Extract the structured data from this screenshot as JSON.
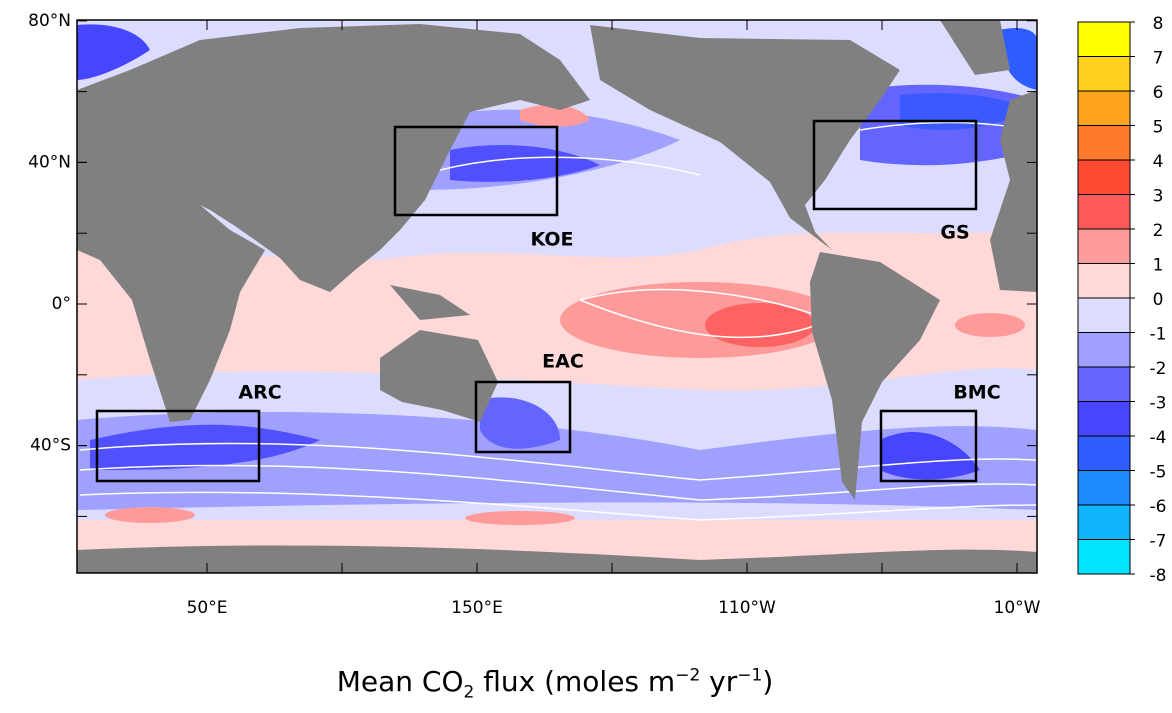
{
  "map": {
    "title": {
      "parts": [
        "Mean CO",
        "2",
        " flux (moles m",
        "−2",
        " yr",
        "−1",
        ")"
      ]
    },
    "lat_ticks": [
      {
        "value": 80,
        "label": "80°N"
      },
      {
        "value": 40,
        "label": "40°N"
      },
      {
        "value": 0,
        "label": "0°"
      },
      {
        "value": -40,
        "label": "40°S"
      }
    ],
    "lon_ticks": [
      {
        "value": 50,
        "label": "50°E"
      },
      {
        "value": 150,
        "label": "150°E"
      },
      {
        "value": 250,
        "label": "110°W"
      },
      {
        "value": 350,
        "label": "10°W"
      }
    ],
    "regions": [
      "KOE",
      "GS",
      "ARC",
      "EAC",
      "BMC"
    ],
    "colorbar": {
      "ticks": [
        8,
        7,
        6,
        5,
        4,
        3,
        2,
        1,
        0,
        -1,
        -2,
        -3,
        -4,
        -5,
        -6,
        -7,
        -8
      ],
      "colors": [
        "#ffff00",
        "#ffd21e",
        "#ffa41e",
        "#ff7a2c",
        "#ff4a32",
        "#ff5a5a",
        "#ff9a9a",
        "#ffd8d8",
        "#dcdcff",
        "#a0a0ff",
        "#6464ff",
        "#4646ff",
        "#2e5cff",
        "#1e88ff",
        "#10b4ff",
        "#00e4ff"
      ]
    }
  }
}
